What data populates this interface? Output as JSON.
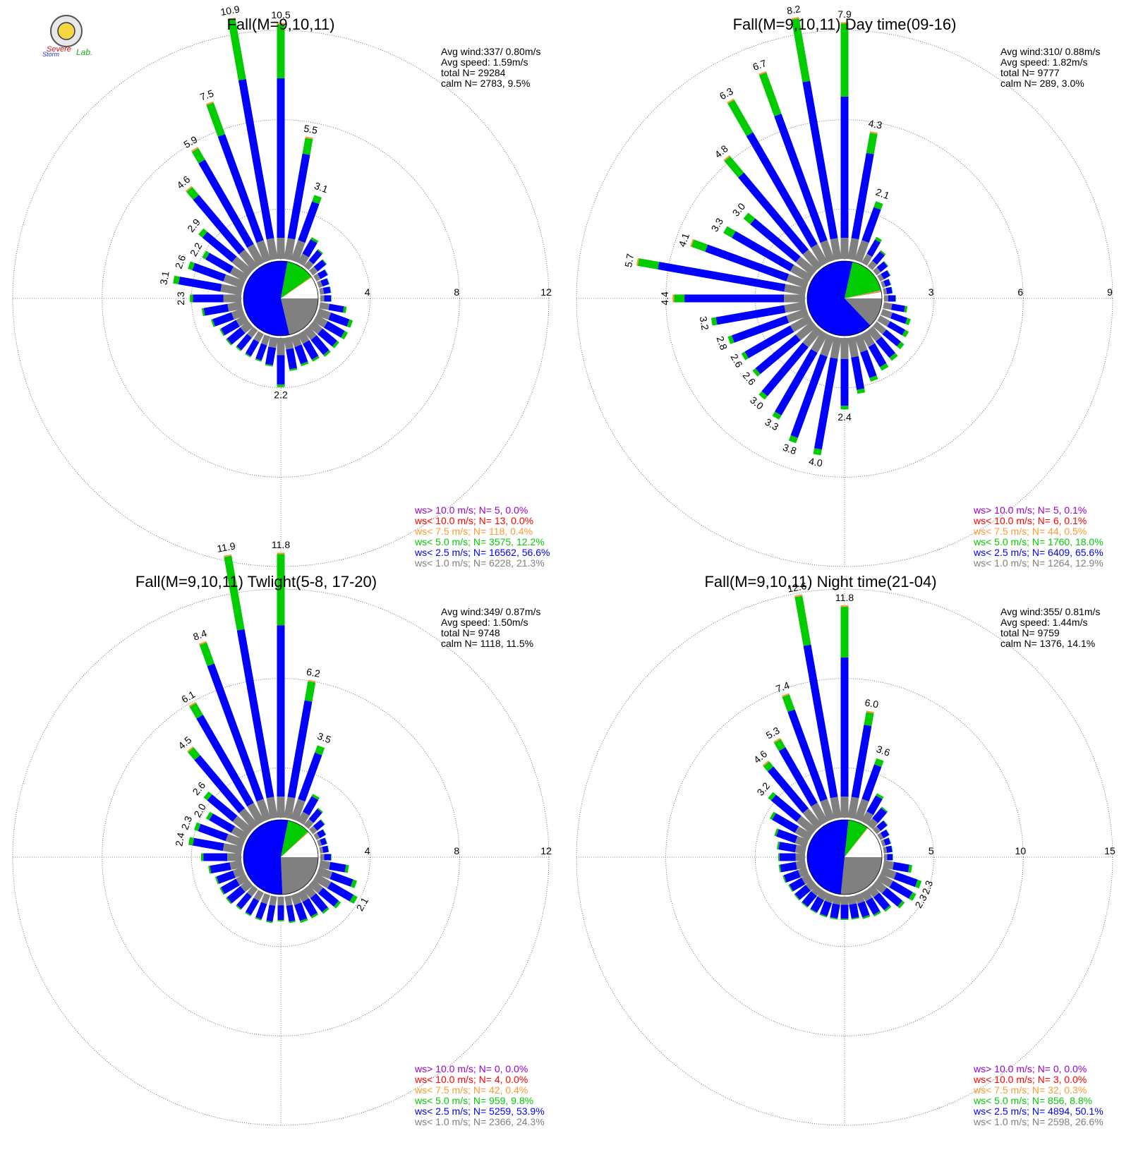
{
  "logo": {
    "line1": "Severe",
    "line2": "Storm",
    "line3": "Lab."
  },
  "colors": {
    "lt1": "#808080",
    "lt2_5": "#0000ff",
    "lt5": "#00cc00",
    "lt7_5": "#ff9933",
    "lt10": "#ff0000",
    "gt10": "#9900cc",
    "calm_white": "#ffffff"
  },
  "chart_data": [
    {
      "type": "wind-rose",
      "title": "Fall(M=9,10,11)",
      "stats": {
        "avg_wind": "Avg wind:337/ 0.80m/s",
        "avg_speed": "Avg speed: 1.59m/s",
        "total": "total N=      29284",
        "calm": "calm N=   2783,   9.5%"
      },
      "ring_values": [
        4,
        8,
        12
      ],
      "ring_labels": [
        "4",
        "8",
        "12"
      ],
      "rmax": 12,
      "sectors": 36,
      "totals": [
        10.5,
        5.5,
        3.1,
        1.3,
        1.0,
        0.8,
        0.6,
        0.5,
        0.5,
        0.5,
        1.2,
        1.6,
        1.6,
        1.5,
        1.5,
        1.4,
        1.4,
        1.5,
        2.2,
        1.3,
        1.2,
        1.2,
        1.2,
        1.3,
        1.3,
        1.5,
        1.8,
        2.3,
        3.1,
        2.6,
        2.2,
        2.9,
        4.6,
        5.9,
        7.5,
        10.9
      ],
      "green_frac": [
        0.23,
        0.13,
        0.1,
        0.08,
        0.06,
        0.05,
        0.05,
        0.05,
        0.05,
        0.05,
        0.1,
        0.1,
        0.1,
        0.08,
        0.07,
        0.07,
        0.07,
        0.05,
        0.05,
        0.05,
        0.05,
        0.05,
        0.05,
        0.05,
        0.05,
        0.05,
        0.05,
        0.06,
        0.08,
        0.08,
        0.08,
        0.08,
        0.1,
        0.1,
        0.2,
        0.25
      ],
      "labels": [
        {
          "i": 0,
          "text": "10.5"
        },
        {
          "i": 1,
          "text": "5.5"
        },
        {
          "i": 2,
          "text": "3.1"
        },
        {
          "i": 18,
          "text": "2.2"
        },
        {
          "i": 27,
          "text": "2.3"
        },
        {
          "i": 28,
          "text": "3.1"
        },
        {
          "i": 29,
          "text": "2.6"
        },
        {
          "i": 30,
          "text": "2.2"
        },
        {
          "i": 31,
          "text": "2.9"
        },
        {
          "i": 32,
          "text": "4.6"
        },
        {
          "i": 33,
          "text": "5.9"
        },
        {
          "i": 34,
          "text": "7.5"
        },
        {
          "i": 35,
          "text": "10.9"
        }
      ],
      "pie": {
        "calm": 9.5,
        "lt1": 21.3,
        "lt2_5": 56.6,
        "lt5": 12.2,
        "lt7_5": 0.4,
        "lt10": 0.0,
        "gt10": 0.0
      },
      "legend": [
        {
          "text": "ws> 10.0 m/s; N=      5,  0.0%",
          "color": "gt10"
        },
        {
          "text": "ws< 10.0 m/s; N=     13,  0.0%",
          "color": "lt10"
        },
        {
          "text": "ws<  7.5 m/s; N=    118,  0.4%",
          "color": "lt7_5"
        },
        {
          "text": "ws<  5.0 m/s; N=  3575, 12.2%",
          "color": "lt5"
        },
        {
          "text": "ws<  2.5 m/s; N= 16562, 56.6%",
          "color": "lt2_5"
        },
        {
          "text": "ws<  1.0 m/s; N=  6228, 21.3%",
          "color": "lt1"
        }
      ]
    },
    {
      "type": "wind-rose",
      "title": "Fall(M=9,10,11) Day time(09-16)",
      "stats": {
        "avg_wind": "Avg wind:310/ 0.88m/s",
        "avg_speed": "Avg speed: 1.82m/s",
        "total": "total N=      9777",
        "calm": "calm N=    289,   3.0%"
      },
      "ring_values": [
        3,
        6,
        9
      ],
      "ring_labels": [
        "3",
        "6",
        "9"
      ],
      "rmax": 9,
      "sectors": 36,
      "totals": [
        7.9,
        4.3,
        2.1,
        1.0,
        0.7,
        0.5,
        0.4,
        0.3,
        0.3,
        0.4,
        0.8,
        1.0,
        1.1,
        1.2,
        1.3,
        1.4,
        1.6,
        1.9,
        2.4,
        4.0,
        3.8,
        3.3,
        3.0,
        2.6,
        2.6,
        2.8,
        3.2,
        4.4,
        5.7,
        4.1,
        3.3,
        3.0,
        4.8,
        6.3,
        6.7,
        8.2
      ],
      "green_frac": [
        0.31,
        0.16,
        0.1,
        0.1,
        0.08,
        0.06,
        0.05,
        0.05,
        0.05,
        0.05,
        0.1,
        0.12,
        0.12,
        0.12,
        0.1,
        0.1,
        0.08,
        0.07,
        0.05,
        0.05,
        0.05,
        0.05,
        0.05,
        0.05,
        0.05,
        0.05,
        0.05,
        0.08,
        0.12,
        0.12,
        0.1,
        0.1,
        0.15,
        0.2,
        0.22,
        0.26
      ],
      "labels": [
        {
          "i": 0,
          "text": "7.9"
        },
        {
          "i": 1,
          "text": "4.3"
        },
        {
          "i": 2,
          "text": "2.1"
        },
        {
          "i": 18,
          "text": "2.4"
        },
        {
          "i": 19,
          "text": "4.0"
        },
        {
          "i": 20,
          "text": "3.8"
        },
        {
          "i": 21,
          "text": "3.3"
        },
        {
          "i": 22,
          "text": "3.0"
        },
        {
          "i": 23,
          "text": "2.6"
        },
        {
          "i": 24,
          "text": "2.6"
        },
        {
          "i": 25,
          "text": "2.8"
        },
        {
          "i": 26,
          "text": "3.2"
        },
        {
          "i": 27,
          "text": "4.4"
        },
        {
          "i": 28,
          "text": "5.7"
        },
        {
          "i": 29,
          "text": "4.1"
        },
        {
          "i": 30,
          "text": "3.3"
        },
        {
          "i": 31,
          "text": "3.0"
        },
        {
          "i": 32,
          "text": "4.8"
        },
        {
          "i": 33,
          "text": "6.3"
        },
        {
          "i": 34,
          "text": "6.7"
        },
        {
          "i": 35,
          "text": "8.2"
        }
      ],
      "pie": {
        "calm": 3.0,
        "lt1": 12.9,
        "lt2_5": 65.6,
        "lt5": 18.0,
        "lt7_5": 0.5,
        "lt10": 0.1,
        "gt10": 0.1
      },
      "legend": [
        {
          "text": "ws> 10.0 m/s; N=      5,  0.1%",
          "color": "gt10"
        },
        {
          "text": "ws< 10.0 m/s; N=      6,  0.1%",
          "color": "lt10"
        },
        {
          "text": "ws<  7.5 m/s; N=     44,  0.5%",
          "color": "lt7_5"
        },
        {
          "text": "ws<  5.0 m/s; N=  1760, 18.0%",
          "color": "lt5"
        },
        {
          "text": "ws<  2.5 m/s; N=  6409, 65.6%",
          "color": "lt2_5"
        },
        {
          "text": "ws<  1.0 m/s; N=  1264, 12.9%",
          "color": "lt1"
        }
      ]
    },
    {
      "type": "wind-rose",
      "title": "Fall(M=9,10,11) Twlight(5-8, 17-20)",
      "stats": {
        "avg_wind": "Avg wind:349/ 0.87m/s",
        "avg_speed": "Avg speed: 1.50m/s",
        "total": "total N=       9748",
        "calm": "calm N=   1118,  11.5%"
      },
      "ring_values": [
        4,
        8,
        12
      ],
      "ring_labels": [
        "4",
        "8",
        "12"
      ],
      "rmax": 12,
      "sectors": 36,
      "totals": [
        11.8,
        6.2,
        3.5,
        1.4,
        1.0,
        0.7,
        0.5,
        0.4,
        0.4,
        0.5,
        1.3,
        1.8,
        2.1,
        1.6,
        1.4,
        1.3,
        1.3,
        1.2,
        1.1,
        1.2,
        1.2,
        1.2,
        1.2,
        1.3,
        1.3,
        1.3,
        1.5,
        1.8,
        2.4,
        2.3,
        2.0,
        2.6,
        4.5,
        6.1,
        8.4,
        11.9
      ],
      "green_frac": [
        0.27,
        0.14,
        0.1,
        0.08,
        0.06,
        0.05,
        0.05,
        0.05,
        0.05,
        0.05,
        0.1,
        0.1,
        0.1,
        0.08,
        0.07,
        0.07,
        0.07,
        0.05,
        0.05,
        0.05,
        0.05,
        0.05,
        0.05,
        0.05,
        0.05,
        0.05,
        0.05,
        0.06,
        0.08,
        0.08,
        0.08,
        0.08,
        0.1,
        0.1,
        0.12,
        0.28
      ],
      "labels": [
        {
          "i": 0,
          "text": "11.8"
        },
        {
          "i": 1,
          "text": "6.2"
        },
        {
          "i": 2,
          "text": "3.5"
        },
        {
          "i": 12,
          "text": "2.1"
        },
        {
          "i": 28,
          "text": "2.4"
        },
        {
          "i": 29,
          "text": "2.3"
        },
        {
          "i": 30,
          "text": "2.0"
        },
        {
          "i": 31,
          "text": "2.6"
        },
        {
          "i": 32,
          "text": "4.5"
        },
        {
          "i": 33,
          "text": "6.1"
        },
        {
          "i": 34,
          "text": "8.4"
        },
        {
          "i": 35,
          "text": "11.9"
        }
      ],
      "pie": {
        "calm": 11.5,
        "lt1": 24.3,
        "lt2_5": 53.9,
        "lt5": 9.8,
        "lt7_5": 0.4,
        "lt10": 0.0,
        "gt10": 0.0
      },
      "legend": [
        {
          "text": "ws> 10.0 m/s; N=      0,  0.0%",
          "color": "gt10"
        },
        {
          "text": "ws< 10.0 m/s; N=      4,  0.0%",
          "color": "lt10"
        },
        {
          "text": "ws<  7.5 m/s; N=     42,  0.4%",
          "color": "lt7_5"
        },
        {
          "text": "ws<  5.0 m/s; N=   959,  9.8%",
          "color": "lt5"
        },
        {
          "text": "ws<  2.5 m/s; N=  5259, 53.9%",
          "color": "lt2_5"
        },
        {
          "text": "ws<  1.0 m/s; N=  2366, 24.3%",
          "color": "lt1"
        }
      ]
    },
    {
      "type": "wind-rose",
      "title": "Fall(M=9,10,11) Night time(21-04)",
      "stats": {
        "avg_wind": "Avg wind:355/ 0.81m/s",
        "avg_speed": "Avg speed: 1.44m/s",
        "total": "total N=       9759",
        "calm": "calm N=   1376,  14.1%"
      },
      "ring_values": [
        5,
        10,
        15
      ],
      "ring_labels": [
        "5",
        "10",
        "15"
      ],
      "rmax": 15,
      "sectors": 36,
      "totals": [
        11.8,
        6.0,
        3.6,
        1.8,
        1.3,
        0.8,
        0.6,
        0.5,
        0.5,
        0.5,
        1.6,
        2.3,
        2.3,
        2.0,
        1.6,
        1.5,
        1.4,
        1.3,
        1.3,
        1.3,
        1.3,
        1.3,
        1.3,
        1.3,
        1.3,
        1.4,
        1.5,
        1.5,
        1.6,
        1.9,
        2.5,
        3.2,
        4.6,
        5.3,
        7.4,
        12.6
      ],
      "green_frac": [
        0.24,
        0.12,
        0.1,
        0.08,
        0.06,
        0.05,
        0.05,
        0.05,
        0.05,
        0.05,
        0.1,
        0.1,
        0.1,
        0.08,
        0.07,
        0.07,
        0.07,
        0.05,
        0.05,
        0.05,
        0.05,
        0.05,
        0.05,
        0.05,
        0.05,
        0.05,
        0.05,
        0.05,
        0.06,
        0.06,
        0.06,
        0.07,
        0.08,
        0.1,
        0.12,
        0.22
      ],
      "labels": [
        {
          "i": 0,
          "text": "11.8"
        },
        {
          "i": 1,
          "text": "6.0"
        },
        {
          "i": 2,
          "text": "3.6"
        },
        {
          "i": 11,
          "text": "2.3"
        },
        {
          "i": 12,
          "text": "2.3"
        },
        {
          "i": 31,
          "text": "3.2"
        },
        {
          "i": 32,
          "text": "4.6"
        },
        {
          "i": 33,
          "text": "5.3"
        },
        {
          "i": 34,
          "text": "7.4"
        },
        {
          "i": 35,
          "text": "12.6"
        }
      ],
      "pie": {
        "calm": 14.1,
        "lt1": 26.6,
        "lt2_5": 50.1,
        "lt5": 8.8,
        "lt7_5": 0.3,
        "lt10": 0.0,
        "gt10": 0.0
      },
      "legend": [
        {
          "text": "ws> 10.0 m/s; N=      0,  0.0%",
          "color": "gt10"
        },
        {
          "text": "ws< 10.0 m/s; N=      3,  0.0%",
          "color": "lt10"
        },
        {
          "text": "ws<  7.5 m/s; N=     32,  0.3%",
          "color": "lt7_5"
        },
        {
          "text": "ws<  5.0 m/s; N=   856,  8.8%",
          "color": "lt5"
        },
        {
          "text": "ws<  2.5 m/s; N=  4894, 50.1%",
          "color": "lt2_5"
        },
        {
          "text": "ws<  1.0 m/s; N=  2598, 26.6%",
          "color": "lt1"
        }
      ]
    }
  ]
}
